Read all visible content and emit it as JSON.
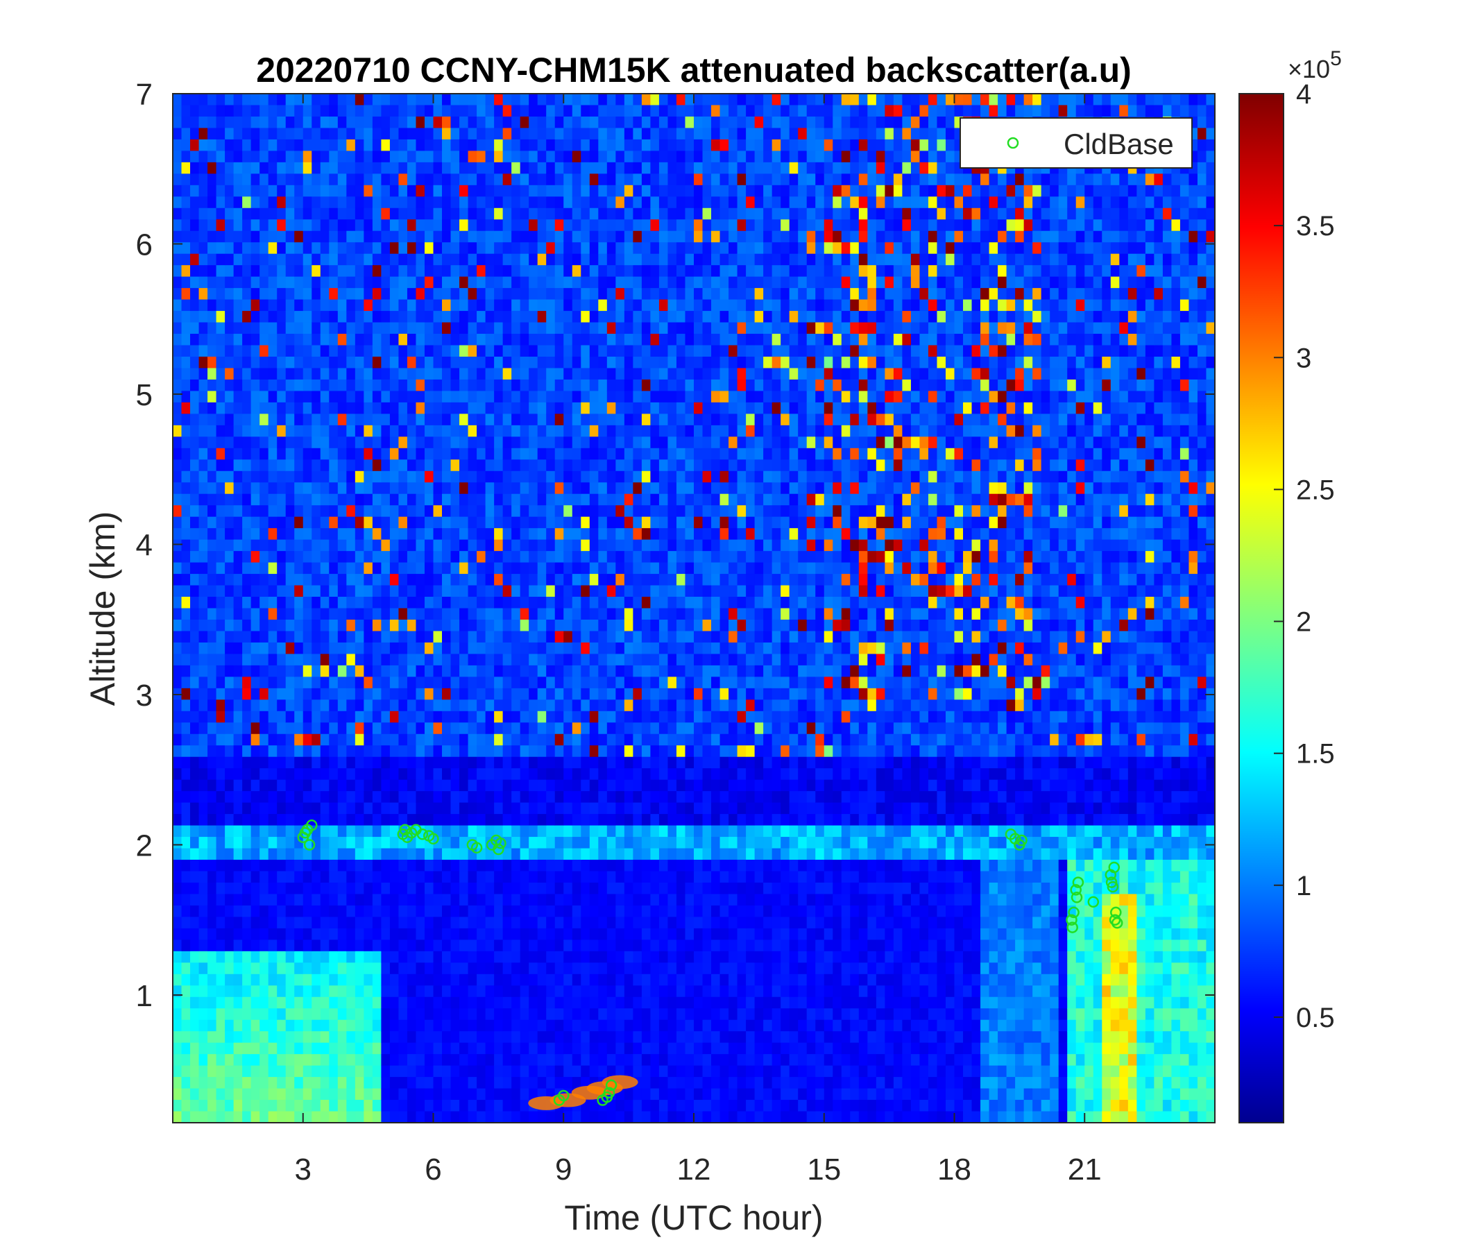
{
  "chart_data": {
    "type": "heatmap",
    "title": "20220710 CCNY-CHM15K attenuated backscatter(a.u)",
    "xlabel": "Time (UTC hour)",
    "ylabel": "Altitude (km)",
    "xlim": [
      0,
      24
    ],
    "ylim": [
      0.15,
      7
    ],
    "x_ticks": [
      "3",
      "6",
      "9",
      "12",
      "15",
      "18",
      "21"
    ],
    "x_tick_values": [
      3,
      6,
      9,
      12,
      15,
      18,
      21
    ],
    "y_ticks": [
      "1",
      "2",
      "3",
      "4",
      "5",
      "6",
      "7"
    ],
    "y_tick_values": [
      1,
      2,
      3,
      4,
      5,
      6,
      7
    ],
    "colorbar": {
      "colormap": "jet",
      "clim": [
        0.1,
        4
      ],
      "exponent_label": "×10",
      "exponent_power": "5",
      "ticks": [
        "0.5",
        "1",
        "1.5",
        "2",
        "2.5",
        "3",
        "3.5",
        "4"
      ],
      "tick_values": [
        0.5,
        1,
        1.5,
        2,
        2.5,
        3,
        3.5,
        4
      ]
    },
    "legend": {
      "entries": [
        "CldBase"
      ],
      "placement": "top-right",
      "marker": "circle",
      "color": "#22dd22"
    },
    "series": [
      {
        "name": "CldBase",
        "marker": "o",
        "color": "#22dd22",
        "points": [
          [
            3.0,
            2.05
          ],
          [
            3.1,
            2.1
          ],
          [
            3.15,
            2.0
          ],
          [
            3.2,
            2.13
          ],
          [
            3.05,
            2.08
          ],
          [
            5.3,
            2.07
          ],
          [
            5.35,
            2.1
          ],
          [
            5.4,
            2.05
          ],
          [
            5.5,
            2.08
          ],
          [
            5.6,
            2.1
          ],
          [
            5.75,
            2.07
          ],
          [
            5.9,
            2.06
          ],
          [
            6.0,
            2.04
          ],
          [
            6.9,
            2.0
          ],
          [
            7.0,
            1.98
          ],
          [
            7.35,
            2.0
          ],
          [
            7.45,
            2.03
          ],
          [
            7.5,
            1.97
          ],
          [
            7.55,
            2.01
          ],
          [
            8.9,
            0.3
          ],
          [
            9.0,
            0.33
          ],
          [
            9.9,
            0.3
          ],
          [
            10.0,
            0.32
          ],
          [
            10.05,
            0.35
          ],
          [
            10.1,
            0.4
          ],
          [
            19.3,
            2.07
          ],
          [
            19.4,
            2.04
          ],
          [
            19.5,
            2.0
          ],
          [
            19.55,
            2.03
          ],
          [
            20.7,
            1.5
          ],
          [
            20.72,
            1.45
          ],
          [
            20.75,
            1.55
          ],
          [
            20.8,
            1.7
          ],
          [
            20.85,
            1.75
          ],
          [
            20.82,
            1.65
          ],
          [
            21.2,
            1.62
          ],
          [
            21.6,
            1.8
          ],
          [
            21.62,
            1.75
          ],
          [
            21.65,
            1.72
          ],
          [
            21.7,
            1.5
          ],
          [
            21.72,
            1.55
          ],
          [
            21.75,
            1.48
          ],
          [
            21.68,
            1.85
          ]
        ]
      }
    ]
  }
}
